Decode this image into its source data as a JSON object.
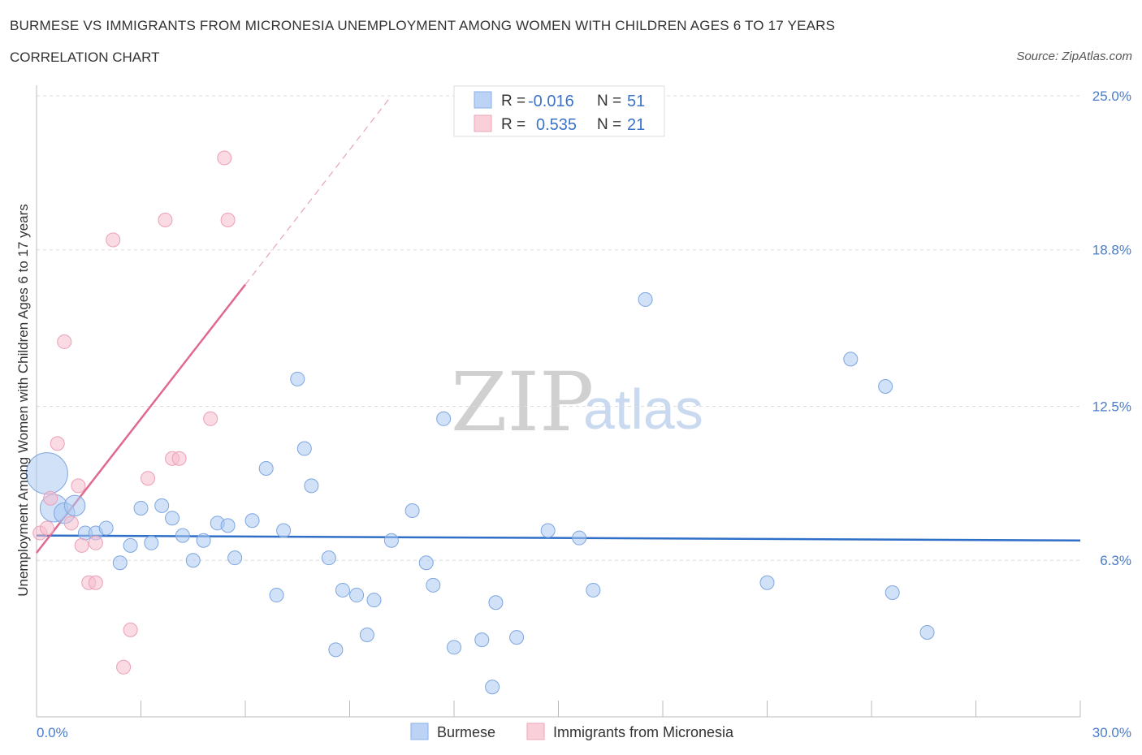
{
  "title": "BURMESE VS IMMIGRANTS FROM MICRONESIA UNEMPLOYMENT AMONG WOMEN WITH CHILDREN AGES 6 TO 17 YEARS",
  "subtitle": "CORRELATION CHART",
  "source": "Source: ZipAtlas.com",
  "watermark": {
    "zip": "ZIP",
    "atlas": "atlas"
  },
  "legend": {
    "r_label": "R =",
    "n_label": "N =",
    "rows": [
      {
        "r": "-0.016",
        "n": "51"
      },
      {
        "r": "0.535",
        "n": "21"
      }
    ]
  },
  "chart_data": {
    "type": "scatter",
    "title": "BURMESE VS IMMIGRANTS FROM MICRONESIA UNEMPLOYMENT AMONG WOMEN WITH CHILDREN AGES 6 TO 17 YEARS",
    "xlabel": "",
    "ylabel": "Unemployment Among Women with Children Ages 6 to 17 years",
    "xlim": [
      0,
      30
    ],
    "ylim": [
      0,
      25
    ],
    "x_tick_labels": [
      "0.0%",
      "30.0%"
    ],
    "y_tick_values": [
      6.3,
      12.5,
      18.8,
      25.0
    ],
    "y_tick_labels": [
      "6.3%",
      "12.5%",
      "18.8%",
      "25.0%"
    ],
    "grid": true,
    "legend_position": "top-center",
    "colors": {
      "burmese": "#a9c8f2",
      "burmese_line": "#2f6fc8",
      "micronesia": "#f6bccc",
      "micronesia_line": "#e0698f"
    },
    "series": [
      {
        "name": "Burmese",
        "trend": {
          "x": [
            0,
            30
          ],
          "y": [
            7.3,
            7.1
          ]
        },
        "points": [
          {
            "x": 0.3,
            "y": 9.8,
            "s": 3
          },
          {
            "x": 0.5,
            "y": 8.4,
            "s": 2
          },
          {
            "x": 0.8,
            "y": 8.2,
            "s": 1.5
          },
          {
            "x": 1.1,
            "y": 8.5,
            "s": 1.5
          },
          {
            "x": 1.4,
            "y": 7.4,
            "s": 1
          },
          {
            "x": 1.7,
            "y": 7.4,
            "s": 1
          },
          {
            "x": 2.0,
            "y": 7.6,
            "s": 1
          },
          {
            "x": 2.4,
            "y": 6.2,
            "s": 1
          },
          {
            "x": 2.7,
            "y": 6.9,
            "s": 1
          },
          {
            "x": 3.0,
            "y": 8.4,
            "s": 1
          },
          {
            "x": 3.3,
            "y": 7.0,
            "s": 1
          },
          {
            "x": 3.6,
            "y": 8.5,
            "s": 1
          },
          {
            "x": 3.9,
            "y": 8.0,
            "s": 1
          },
          {
            "x": 4.2,
            "y": 7.3,
            "s": 1
          },
          {
            "x": 4.5,
            "y": 6.3,
            "s": 1
          },
          {
            "x": 4.8,
            "y": 7.1,
            "s": 1
          },
          {
            "x": 5.2,
            "y": 7.8,
            "s": 1
          },
          {
            "x": 5.5,
            "y": 7.7,
            "s": 1
          },
          {
            "x": 5.7,
            "y": 6.4,
            "s": 1
          },
          {
            "x": 6.2,
            "y": 7.9,
            "s": 1
          },
          {
            "x": 6.6,
            "y": 10.0,
            "s": 1
          },
          {
            "x": 6.9,
            "y": 4.9,
            "s": 1
          },
          {
            "x": 7.1,
            "y": 7.5,
            "s": 1
          },
          {
            "x": 7.5,
            "y": 13.6,
            "s": 1
          },
          {
            "x": 7.7,
            "y": 10.8,
            "s": 1
          },
          {
            "x": 7.9,
            "y": 9.3,
            "s": 1
          },
          {
            "x": 8.4,
            "y": 6.4,
            "s": 1
          },
          {
            "x": 8.6,
            "y": 2.7,
            "s": 1
          },
          {
            "x": 8.8,
            "y": 5.1,
            "s": 1
          },
          {
            "x": 9.2,
            "y": 4.9,
            "s": 1
          },
          {
            "x": 9.5,
            "y": 3.3,
            "s": 1
          },
          {
            "x": 9.7,
            "y": 4.7,
            "s": 1
          },
          {
            "x": 10.2,
            "y": 7.1,
            "s": 1
          },
          {
            "x": 10.8,
            "y": 8.3,
            "s": 1
          },
          {
            "x": 11.2,
            "y": 6.2,
            "s": 1
          },
          {
            "x": 11.4,
            "y": 5.3,
            "s": 1
          },
          {
            "x": 11.7,
            "y": 12.0,
            "s": 1
          },
          {
            "x": 12.0,
            "y": 2.8,
            "s": 1
          },
          {
            "x": 12.8,
            "y": 3.1,
            "s": 1
          },
          {
            "x": 13.1,
            "y": 1.2,
            "s": 1
          },
          {
            "x": 13.2,
            "y": 4.6,
            "s": 1
          },
          {
            "x": 13.8,
            "y": 3.2,
            "s": 1
          },
          {
            "x": 14.7,
            "y": 7.5,
            "s": 1
          },
          {
            "x": 15.6,
            "y": 7.2,
            "s": 1
          },
          {
            "x": 16.0,
            "y": 5.1,
            "s": 1
          },
          {
            "x": 17.5,
            "y": 16.8,
            "s": 1
          },
          {
            "x": 21.0,
            "y": 5.4,
            "s": 1
          },
          {
            "x": 23.4,
            "y": 14.4,
            "s": 1
          },
          {
            "x": 24.4,
            "y": 13.3,
            "s": 1
          },
          {
            "x": 24.6,
            "y": 5.0,
            "s": 1
          },
          {
            "x": 25.6,
            "y": 3.4,
            "s": 1
          }
        ]
      },
      {
        "name": "Immigrants from Micronesia",
        "trend": {
          "x": [
            0,
            6.0
          ],
          "y": [
            6.6,
            17.4
          ],
          "dashed_to": {
            "x": 10.2,
            "y": 25.0
          }
        },
        "points": [
          {
            "x": 0.1,
            "y": 7.4,
            "s": 1
          },
          {
            "x": 0.3,
            "y": 7.6,
            "s": 1
          },
          {
            "x": 0.4,
            "y": 8.8,
            "s": 1
          },
          {
            "x": 0.6,
            "y": 11.0,
            "s": 1
          },
          {
            "x": 0.8,
            "y": 15.1,
            "s": 1
          },
          {
            "x": 1.0,
            "y": 7.8,
            "s": 1
          },
          {
            "x": 1.2,
            "y": 9.3,
            "s": 1
          },
          {
            "x": 1.3,
            "y": 6.9,
            "s": 1
          },
          {
            "x": 1.5,
            "y": 5.4,
            "s": 1
          },
          {
            "x": 1.7,
            "y": 5.4,
            "s": 1
          },
          {
            "x": 1.7,
            "y": 7.0,
            "s": 1
          },
          {
            "x": 2.2,
            "y": 19.2,
            "s": 1
          },
          {
            "x": 2.5,
            "y": 2.0,
            "s": 1
          },
          {
            "x": 2.7,
            "y": 3.5,
            "s": 1
          },
          {
            "x": 3.2,
            "y": 9.6,
            "s": 1
          },
          {
            "x": 3.7,
            "y": 20.0,
            "s": 1
          },
          {
            "x": 3.9,
            "y": 10.4,
            "s": 1
          },
          {
            "x": 4.1,
            "y": 10.4,
            "s": 1
          },
          {
            "x": 5.0,
            "y": 12.0,
            "s": 1
          },
          {
            "x": 5.4,
            "y": 22.5,
            "s": 1
          },
          {
            "x": 5.5,
            "y": 20.0,
            "s": 1
          }
        ]
      }
    ]
  },
  "bottom_legend": [
    "Burmese",
    "Immigrants from Micronesia"
  ]
}
